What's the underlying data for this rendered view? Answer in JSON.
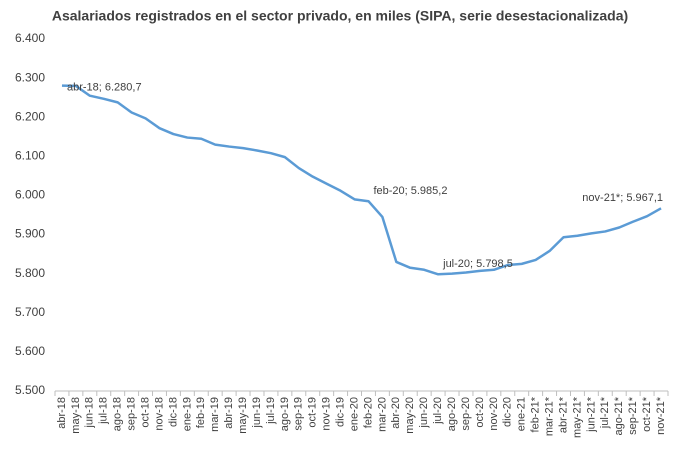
{
  "chart_data": {
    "type": "line",
    "title": "Asalariados  registrados  en el sector privado,  en miles (SIPA, serie desestacionalizada)",
    "categories": [
      "abr-18",
      "may-18",
      "jun-18",
      "jul-18",
      "ago-18",
      "sep-18",
      "oct-18",
      "nov-18",
      "dic-18",
      "ene-19",
      "feb-19",
      "mar-19",
      "abr-19",
      "may-19",
      "jun-19",
      "jul-19",
      "ago-19",
      "sep-19",
      "oct-19",
      "nov-19",
      "dic-19",
      "ene-20",
      "feb-20",
      "mar-20",
      "abr-20",
      "may-20",
      "jun-20",
      "jul-20",
      "ago-20",
      "sep-20",
      "oct-20",
      "nov-20",
      "dic-20",
      "ene-21",
      "feb-21*",
      "mar-21*",
      "abr-21*",
      "may-21*",
      "jun-21*",
      "jul-21*",
      "ago-21*",
      "sep-21*",
      "oct-21*",
      "nov-21*"
    ],
    "series": [
      {
        "name": "Asalariados registrados",
        "color": "#5b9bd5",
        "values": [
          6280.7,
          6280,
          6255,
          6247,
          6238,
          6212,
          6197,
          6172,
          6157,
          6148,
          6145,
          6130,
          6125,
          6121,
          6115,
          6108,
          6098,
          6070,
          6048,
          6030,
          6012,
          5990,
          5985.2,
          5945,
          5830,
          5815,
          5810,
          5798.5,
          5800,
          5803,
          5807,
          5810,
          5822,
          5825,
          5835,
          5858,
          5893,
          5897,
          5903,
          5908,
          5918,
          5933,
          5947,
          5967.1
        ],
        "value_labels": [
          "abr-18; 6.280,7",
          null,
          null,
          null,
          null,
          null,
          null,
          null,
          null,
          null,
          null,
          null,
          null,
          null,
          null,
          null,
          null,
          null,
          null,
          null,
          null,
          null,
          "feb-20; 5.985,2",
          null,
          null,
          null,
          null,
          "jul-20; 5.798,5",
          null,
          null,
          null,
          null,
          null,
          null,
          null,
          null,
          null,
          null,
          null,
          null,
          null,
          null,
          null,
          "nov-21*; 5.967,1"
        ]
      }
    ],
    "ylim": [
      5500,
      6400
    ],
    "yticks": [
      {
        "value": 5500,
        "label": "5.500"
      },
      {
        "value": 5600,
        "label": "5.600"
      },
      {
        "value": 5700,
        "label": "5.700"
      },
      {
        "value": 5800,
        "label": "5.800"
      },
      {
        "value": 5900,
        "label": "5.900"
      },
      {
        "value": 6000,
        "label": "6.000"
      },
      {
        "value": 6100,
        "label": "6.100"
      },
      {
        "value": 6200,
        "label": "6.200"
      },
      {
        "value": 6300,
        "label": "6.300"
      },
      {
        "value": 6400,
        "label": "6.400"
      }
    ],
    "grid": false
  }
}
